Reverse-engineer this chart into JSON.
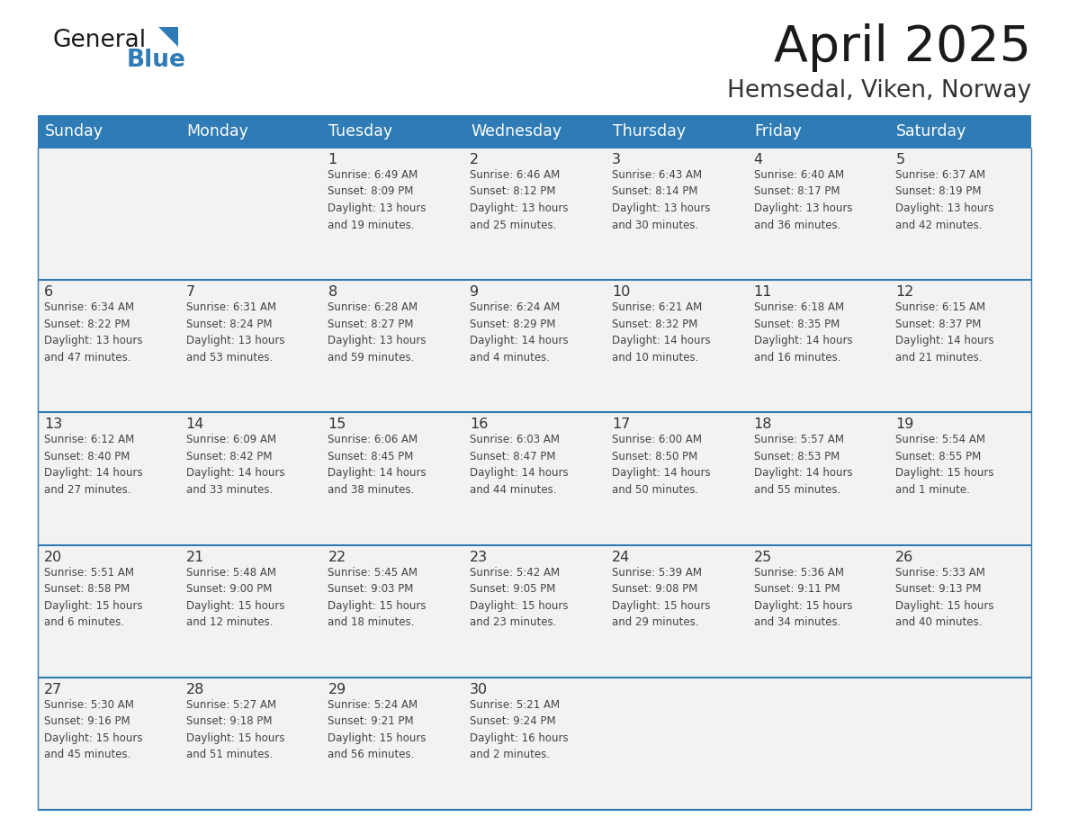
{
  "title": "April 2025",
  "subtitle": "Hemsedal, Viken, Norway",
  "header_bg": "#2E7BB5",
  "header_text": "#FFFFFF",
  "cell_bg": "#F2F2F2",
  "row_line_color": "#2E7BB5",
  "day_headers": [
    "Sunday",
    "Monday",
    "Tuesday",
    "Wednesday",
    "Thursday",
    "Friday",
    "Saturday"
  ],
  "cell_text_color": "#444444",
  "day_num_color": "#333333",
  "calendar": [
    [
      {
        "day": null,
        "info": null
      },
      {
        "day": null,
        "info": null
      },
      {
        "day": 1,
        "info": "Sunrise: 6:49 AM\nSunset: 8:09 PM\nDaylight: 13 hours\nand 19 minutes."
      },
      {
        "day": 2,
        "info": "Sunrise: 6:46 AM\nSunset: 8:12 PM\nDaylight: 13 hours\nand 25 minutes."
      },
      {
        "day": 3,
        "info": "Sunrise: 6:43 AM\nSunset: 8:14 PM\nDaylight: 13 hours\nand 30 minutes."
      },
      {
        "day": 4,
        "info": "Sunrise: 6:40 AM\nSunset: 8:17 PM\nDaylight: 13 hours\nand 36 minutes."
      },
      {
        "day": 5,
        "info": "Sunrise: 6:37 AM\nSunset: 8:19 PM\nDaylight: 13 hours\nand 42 minutes."
      }
    ],
    [
      {
        "day": 6,
        "info": "Sunrise: 6:34 AM\nSunset: 8:22 PM\nDaylight: 13 hours\nand 47 minutes."
      },
      {
        "day": 7,
        "info": "Sunrise: 6:31 AM\nSunset: 8:24 PM\nDaylight: 13 hours\nand 53 minutes."
      },
      {
        "day": 8,
        "info": "Sunrise: 6:28 AM\nSunset: 8:27 PM\nDaylight: 13 hours\nand 59 minutes."
      },
      {
        "day": 9,
        "info": "Sunrise: 6:24 AM\nSunset: 8:29 PM\nDaylight: 14 hours\nand 4 minutes."
      },
      {
        "day": 10,
        "info": "Sunrise: 6:21 AM\nSunset: 8:32 PM\nDaylight: 14 hours\nand 10 minutes."
      },
      {
        "day": 11,
        "info": "Sunrise: 6:18 AM\nSunset: 8:35 PM\nDaylight: 14 hours\nand 16 minutes."
      },
      {
        "day": 12,
        "info": "Sunrise: 6:15 AM\nSunset: 8:37 PM\nDaylight: 14 hours\nand 21 minutes."
      }
    ],
    [
      {
        "day": 13,
        "info": "Sunrise: 6:12 AM\nSunset: 8:40 PM\nDaylight: 14 hours\nand 27 minutes."
      },
      {
        "day": 14,
        "info": "Sunrise: 6:09 AM\nSunset: 8:42 PM\nDaylight: 14 hours\nand 33 minutes."
      },
      {
        "day": 15,
        "info": "Sunrise: 6:06 AM\nSunset: 8:45 PM\nDaylight: 14 hours\nand 38 minutes."
      },
      {
        "day": 16,
        "info": "Sunrise: 6:03 AM\nSunset: 8:47 PM\nDaylight: 14 hours\nand 44 minutes."
      },
      {
        "day": 17,
        "info": "Sunrise: 6:00 AM\nSunset: 8:50 PM\nDaylight: 14 hours\nand 50 minutes."
      },
      {
        "day": 18,
        "info": "Sunrise: 5:57 AM\nSunset: 8:53 PM\nDaylight: 14 hours\nand 55 minutes."
      },
      {
        "day": 19,
        "info": "Sunrise: 5:54 AM\nSunset: 8:55 PM\nDaylight: 15 hours\nand 1 minute."
      }
    ],
    [
      {
        "day": 20,
        "info": "Sunrise: 5:51 AM\nSunset: 8:58 PM\nDaylight: 15 hours\nand 6 minutes."
      },
      {
        "day": 21,
        "info": "Sunrise: 5:48 AM\nSunset: 9:00 PM\nDaylight: 15 hours\nand 12 minutes."
      },
      {
        "day": 22,
        "info": "Sunrise: 5:45 AM\nSunset: 9:03 PM\nDaylight: 15 hours\nand 18 minutes."
      },
      {
        "day": 23,
        "info": "Sunrise: 5:42 AM\nSunset: 9:05 PM\nDaylight: 15 hours\nand 23 minutes."
      },
      {
        "day": 24,
        "info": "Sunrise: 5:39 AM\nSunset: 9:08 PM\nDaylight: 15 hours\nand 29 minutes."
      },
      {
        "day": 25,
        "info": "Sunrise: 5:36 AM\nSunset: 9:11 PM\nDaylight: 15 hours\nand 34 minutes."
      },
      {
        "day": 26,
        "info": "Sunrise: 5:33 AM\nSunset: 9:13 PM\nDaylight: 15 hours\nand 40 minutes."
      }
    ],
    [
      {
        "day": 27,
        "info": "Sunrise: 5:30 AM\nSunset: 9:16 PM\nDaylight: 15 hours\nand 45 minutes."
      },
      {
        "day": 28,
        "info": "Sunrise: 5:27 AM\nSunset: 9:18 PM\nDaylight: 15 hours\nand 51 minutes."
      },
      {
        "day": 29,
        "info": "Sunrise: 5:24 AM\nSunset: 9:21 PM\nDaylight: 15 hours\nand 56 minutes."
      },
      {
        "day": 30,
        "info": "Sunrise: 5:21 AM\nSunset: 9:24 PM\nDaylight: 16 hours\nand 2 minutes."
      },
      {
        "day": null,
        "info": null
      },
      {
        "day": null,
        "info": null
      },
      {
        "day": null,
        "info": null
      }
    ]
  ],
  "logo_general_color": "#1a1a1a",
  "logo_blue_color": "#2E7BB5",
  "logo_triangle_color": "#2E7BB5"
}
